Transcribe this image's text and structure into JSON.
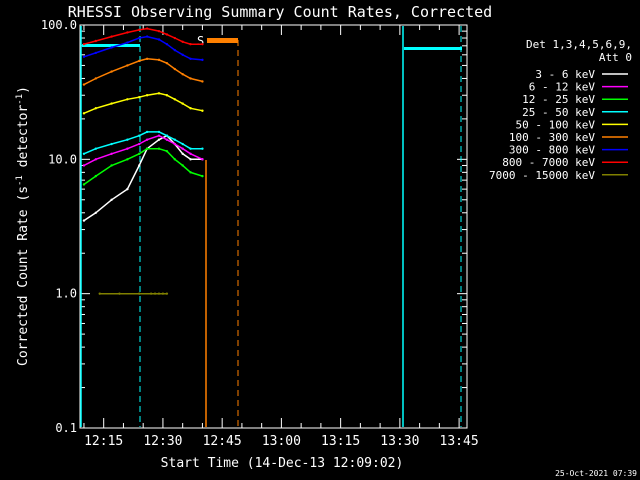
{
  "chart_data": {
    "type": "line",
    "title": "RHESSI Observing Summary Count Rates, Corrected",
    "xlabel": "Start Time (14-Dec-13 12:09:02)",
    "ylabel_main": "Corrected Count Rate (s",
    "ylabel_sup1": "-1",
    "ylabel_mid": " detector",
    "ylabel_sup2": "-1",
    "ylabel_end": ")",
    "yscale": "log",
    "ylim": [
      0.1,
      100
    ],
    "xlim_minutes": [
      0,
      98
    ],
    "x_tick_labels": [
      "12:15",
      "12:30",
      "12:45",
      "13:00",
      "13:15",
      "13:30",
      "13:45"
    ],
    "x_tick_minutes": [
      6,
      21,
      36,
      51,
      66,
      81,
      96
    ],
    "y_tick_labels": [
      "0.1",
      "1.0",
      "10.0",
      "100.0"
    ],
    "y_tick_values": [
      0.1,
      1,
      10,
      100
    ],
    "legend": {
      "header": "Det 1,3,4,5,6,9,",
      "header2": "Att 0",
      "placement": "right"
    },
    "timestamp": "25-Oct-2021 07:39",
    "flag_label": "S",
    "series": [
      {
        "name": "3 - 6 keV",
        "color": "#ffffff",
        "x": [
          1,
          4,
          8,
          12,
          15,
          17,
          20,
          22,
          24,
          26,
          28,
          31
        ],
        "y": [
          3.5,
          4,
          5,
          6,
          9,
          12,
          14,
          15,
          13,
          11,
          10,
          10
        ]
      },
      {
        "name": "6 - 12 keV",
        "color": "#ff00ff",
        "x": [
          1,
          4,
          8,
          12,
          15,
          17,
          20,
          22,
          24,
          26,
          28,
          31
        ],
        "y": [
          9,
          10,
          11,
          12,
          13,
          14,
          15,
          14,
          13,
          12,
          11,
          10
        ]
      },
      {
        "name": "12 - 25 keV",
        "color": "#00ff00",
        "x": [
          1,
          4,
          8,
          12,
          15,
          17,
          20,
          22,
          24,
          26,
          28,
          31
        ],
        "y": [
          6.5,
          7.5,
          9,
          10,
          11,
          12,
          12,
          11.5,
          10,
          9,
          8,
          7.5
        ]
      },
      {
        "name": "25 - 50 keV",
        "color": "#00ffff",
        "x": [
          1,
          4,
          8,
          12,
          15,
          17,
          20,
          22,
          24,
          26,
          28,
          31
        ],
        "y": [
          11,
          12,
          13,
          14,
          15,
          16,
          16,
          15,
          14,
          13,
          12,
          12
        ]
      },
      {
        "name": "50 - 100 keV",
        "color": "#ffff00",
        "x": [
          1,
          4,
          8,
          12,
          15,
          17,
          20,
          22,
          24,
          26,
          28,
          31
        ],
        "y": [
          22,
          24,
          26,
          28,
          29,
          30,
          31,
          30,
          28,
          26,
          24,
          23
        ]
      },
      {
        "name": "100 - 300 keV",
        "color": "#ff8000",
        "x": [
          1,
          4,
          8,
          12,
          15,
          17,
          20,
          22,
          24,
          26,
          28,
          31
        ],
        "y": [
          36,
          40,
          45,
          50,
          54,
          56,
          55,
          52,
          47,
          43,
          40,
          38
        ]
      },
      {
        "name": "300 - 800 keV",
        "color": "#0000ff",
        "x": [
          1,
          4,
          8,
          12,
          15,
          17,
          20,
          22,
          24,
          26,
          28,
          31
        ],
        "y": [
          58,
          62,
          68,
          74,
          80,
          82,
          78,
          72,
          65,
          60,
          56,
          55
        ]
      },
      {
        "name": "800 - 7000 keV",
        "color": "#ff0000",
        "x": [
          1,
          4,
          8,
          12,
          15,
          17,
          20,
          22,
          24,
          26,
          28,
          31
        ],
        "y": [
          72,
          76,
          82,
          88,
          92,
          94,
          90,
          85,
          80,
          75,
          72,
          72
        ]
      },
      {
        "name": "7000 - 15000 keV",
        "color": "#808000",
        "x": [
          5,
          10,
          15,
          18,
          19,
          20,
          21,
          22
        ],
        "y": [
          1,
          1,
          1,
          1,
          1,
          1,
          1,
          1
        ]
      }
    ]
  }
}
